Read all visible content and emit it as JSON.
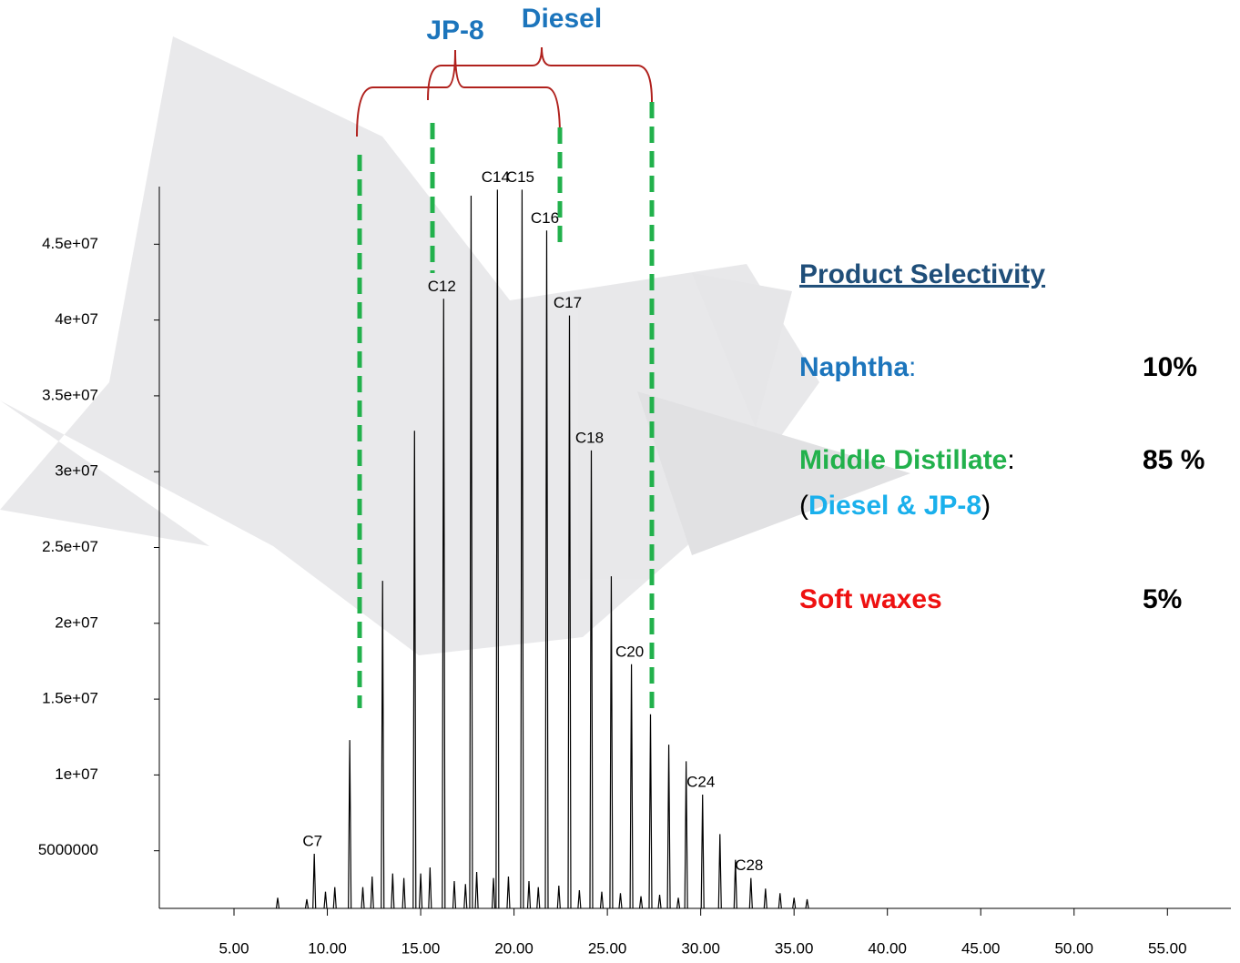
{
  "chart_data": {
    "type": "chromatogram",
    "x": [
      7.34,
      8.9,
      9.3,
      9.9,
      10.4,
      11.2,
      11.9,
      12.4,
      12.96,
      13.5,
      14.1,
      14.67,
      15.0,
      15.5,
      16.23,
      16.8,
      17.4,
      17.7,
      18.0,
      18.9,
      19.11,
      19.7,
      20.43,
      20.8,
      21.3,
      21.75,
      22.4,
      22.97,
      23.5,
      24.14,
      24.7,
      25.21,
      25.7,
      26.29,
      26.8,
      27.31,
      27.8,
      28.29,
      28.8,
      29.22,
      30.1,
      31.03,
      31.86,
      32.69,
      33.47,
      34.25,
      35.0,
      35.7
    ],
    "values": [
      1900000,
      1800000,
      4800000,
      2300000,
      2600000,
      12300000,
      2600000,
      3300000,
      22800000,
      3500000,
      3200000,
      32700000,
      3500000,
      3900000,
      41400000,
      3000000,
      2800000,
      48200000,
      3600000,
      3200000,
      48600000,
      3300000,
      48600000,
      3000000,
      2600000,
      45900000,
      2700000,
      40300000,
      2400000,
      31400000,
      2300000,
      23100000,
      2200000,
      17300000,
      2000000,
      14000000,
      2100000,
      12000000,
      1900000,
      10900000,
      8700000,
      6100000,
      4400000,
      3200000,
      2500000,
      2200000,
      1900000,
      1800000
    ],
    "peak_labels": [
      null,
      null,
      "C7",
      null,
      null,
      null,
      null,
      null,
      null,
      null,
      null,
      null,
      null,
      null,
      "C12",
      null,
      null,
      null,
      null,
      null,
      "C14",
      null,
      "C15",
      null,
      null,
      "C16",
      null,
      "C17",
      null,
      "C18",
      null,
      null,
      null,
      "C20",
      null,
      null,
      null,
      null,
      null,
      null,
      "C24",
      null,
      null,
      "C28",
      null,
      null,
      null,
      null
    ],
    "color": "#000000",
    "xlim": [
      1,
      58.4
    ],
    "xticks": [
      {
        "value": 5,
        "label": "5.00"
      },
      {
        "value": 10,
        "label": "10.00"
      },
      {
        "value": 15,
        "label": "15.00"
      },
      {
        "value": 20,
        "label": "20.00"
      },
      {
        "value": 25,
        "label": "25.00"
      },
      {
        "value": 30,
        "label": "30.00"
      },
      {
        "value": 35,
        "label": "35.00"
      },
      {
        "value": 40,
        "label": "40.00"
      },
      {
        "value": 45,
        "label": "45.00"
      },
      {
        "value": 50,
        "label": "50.00"
      },
      {
        "value": 55,
        "label": "55.00"
      }
    ],
    "ylim": [
      1200000,
      48800000
    ],
    "yticks": [
      5000000,
      {
        "value": 10000000,
        "label": "1e+07"
      },
      {
        "value": 15000000,
        "label": "1.5e+07"
      },
      {
        "value": 20000000,
        "label": "2e+07"
      },
      {
        "value": 25000000,
        "label": "2.5e+07"
      },
      {
        "value": 30000000,
        "label": "3e+07"
      },
      {
        "value": 35000000,
        "label": "3.5e+07"
      },
      {
        "value": 40000000,
        "label": "4e+07"
      },
      {
        "value": 45000000,
        "label": "4.5e+07"
      }
    ],
    "annotations": [
      "JP-8",
      "Diesel"
    ]
  },
  "selectivity": {
    "title": "Product Selectivity",
    "rows": [
      {
        "name": "Naphtha",
        "sep": ":",
        "value": "10%"
      },
      {
        "name": "Middle Distillate",
        "sep": ":",
        "value": "85 %",
        "note": [
          "(",
          "Diesel & JP-8",
          ")"
        ]
      },
      {
        "name": "Soft waxes",
        "value": "5%"
      }
    ]
  }
}
